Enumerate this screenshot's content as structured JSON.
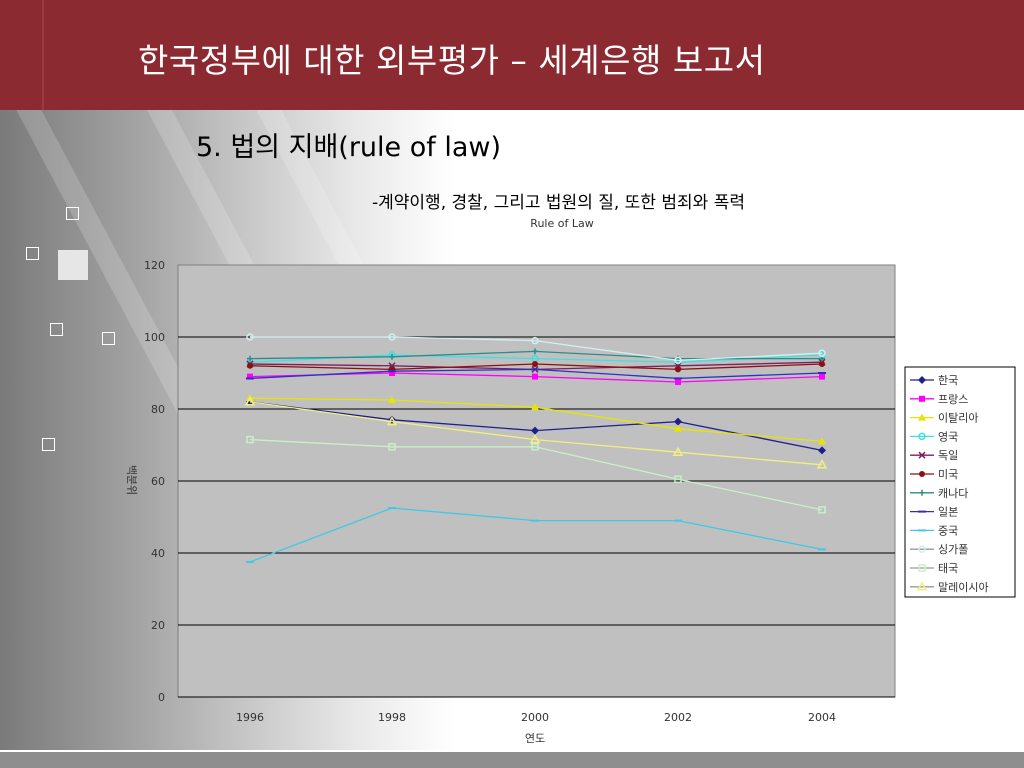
{
  "slide": {
    "title": "한국정부에 대한 외부평가 – 세계은행 보고서",
    "subtitle": "5. 법의 지배(rule of law)",
    "description": "-계약이행, 경찰, 그리고 법원의 질, 또한 범죄와 폭력"
  },
  "colors": {
    "header": "#8b2a31",
    "plot_bg": "#c0c0c0",
    "grid": "#000000"
  },
  "chart_data": {
    "type": "line",
    "title": "Rule of Law",
    "xlabel": "연도",
    "ylabel": "백분위",
    "x": [
      "1996",
      "1998",
      "2000",
      "2002",
      "2004"
    ],
    "ylim": [
      0,
      120
    ],
    "yticks": [
      0,
      20,
      40,
      60,
      80,
      100,
      120
    ],
    "grid": true,
    "legend_position": "right",
    "series": [
      {
        "name": "한국",
        "color": "#1f1f8c",
        "marker": "diamond",
        "values": [
          82,
          77,
          74,
          76.5,
          68.5
        ]
      },
      {
        "name": "프랑스",
        "color": "#ff00ff",
        "marker": "square",
        "values": [
          89,
          90,
          89,
          87.5,
          89
        ]
      },
      {
        "name": "이탈리아",
        "color": "#e6e600",
        "marker": "triangle",
        "values": [
          83,
          82.5,
          80.5,
          74.5,
          71
        ]
      },
      {
        "name": "영국",
        "color": "#40e0e0",
        "marker": "circle-open",
        "values": [
          93,
          95,
          94,
          93,
          95
        ]
      },
      {
        "name": "독일",
        "color": "#7b1f5f",
        "marker": "x",
        "values": [
          92.5,
          92,
          91,
          92,
          93
        ]
      },
      {
        "name": "미국",
        "color": "#8b1010",
        "marker": "circle",
        "values": [
          92,
          91,
          92.5,
          91,
          92.5
        ]
      },
      {
        "name": "캐나다",
        "color": "#2e8b8b",
        "marker": "plus",
        "values": [
          94,
          94.5,
          96,
          94,
          94
        ]
      },
      {
        "name": "일본",
        "color": "#3030c0",
        "marker": "dash",
        "values": [
          88.5,
          90.5,
          91,
          88.5,
          90
        ]
      },
      {
        "name": "중국",
        "color": "#40c8e8",
        "marker": "dash",
        "values": [
          37.5,
          52.5,
          49,
          49,
          41
        ]
      },
      {
        "name": "싱가폴",
        "color": "#d0f0f0",
        "marker": "circle-open",
        "values": [
          100,
          100,
          99,
          93.5,
          95.5
        ]
      },
      {
        "name": "태국",
        "color": "#c8f0c8",
        "marker": "square-open",
        "values": [
          71.5,
          69.5,
          69.5,
          60.5,
          52
        ]
      },
      {
        "name": "말레이시아",
        "color": "#f0f080",
        "marker": "triangle-open",
        "values": [
          82,
          76.5,
          71.5,
          68,
          64.5
        ]
      }
    ]
  }
}
